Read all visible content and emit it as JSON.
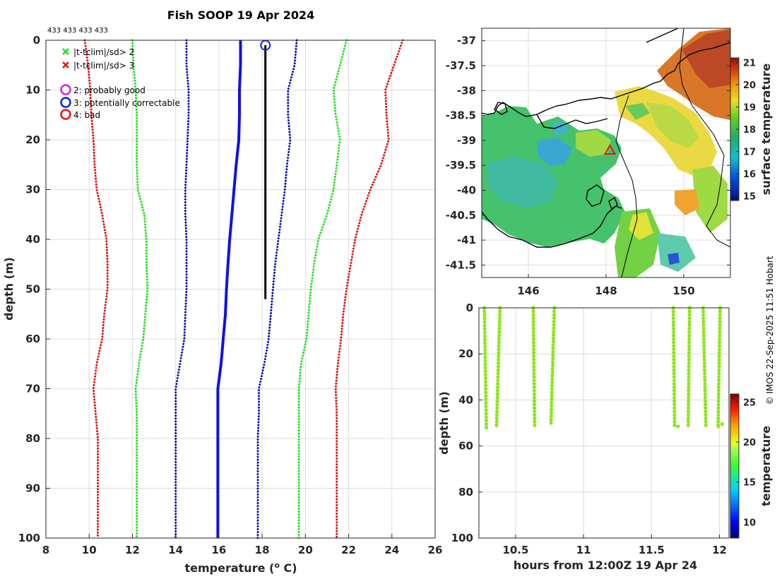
{
  "chart_data": [
    {
      "type": "line",
      "id": "profile",
      "title": "Fish SOOP 19 Apr 2024",
      "annotation": "433 433 433 433",
      "xlabel": "temperature (",
      "xlabel_sup": "o",
      "xlabel_end": " C)",
      "ylabel": "depth (m)",
      "xlim": [
        8,
        26
      ],
      "ylim": [
        0,
        100
      ],
      "xticks": [
        8,
        10,
        12,
        14,
        16,
        18,
        20,
        22,
        24,
        26
      ],
      "yticks": [
        0,
        10,
        20,
        30,
        40,
        50,
        60,
        70,
        80,
        90,
        100
      ],
      "legend": [
        {
          "label": "|t-tclim|/sd> 2",
          "marker": "x",
          "color": "#22dd22"
        },
        {
          "label": "|t-tclim|/sd> 3",
          "marker": "x",
          "color": "#ee1111"
        },
        {
          "label": "2: probably good",
          "marker": "o",
          "color": "#dd22dd"
        },
        {
          "label": "3: potentially correctable",
          "marker": "o",
          "color": "#1122dd"
        },
        {
          "label": "4: bad",
          "marker": "o",
          "color": "#ee1111"
        }
      ],
      "series": [
        {
          "name": "clim_mean",
          "style": "solid",
          "color": "#1010e8",
          "points": [
            [
              17.0,
              0
            ],
            [
              17.0,
              5
            ],
            [
              16.95,
              10
            ],
            [
              16.95,
              15
            ],
            [
              16.92,
              20
            ],
            [
              16.8,
              25
            ],
            [
              16.7,
              30
            ],
            [
              16.6,
              35
            ],
            [
              16.5,
              40
            ],
            [
              16.42,
              45
            ],
            [
              16.35,
              50
            ],
            [
              16.3,
              55
            ],
            [
              16.2,
              60
            ],
            [
              16.1,
              65
            ],
            [
              15.95,
              70
            ],
            [
              15.95,
              75
            ],
            [
              15.95,
              80
            ],
            [
              15.95,
              85
            ],
            [
              15.95,
              90
            ],
            [
              15.95,
              95
            ],
            [
              15.95,
              100
            ]
          ]
        },
        {
          "name": "clim_minus_1sd",
          "style": "dotted",
          "color": "#1010b0",
          "points": [
            [
              14.5,
              0
            ],
            [
              14.5,
              5
            ],
            [
              14.6,
              10
            ],
            [
              14.6,
              15
            ],
            [
              14.55,
              20
            ],
            [
              14.5,
              25
            ],
            [
              14.45,
              30
            ],
            [
              14.45,
              35
            ],
            [
              14.5,
              40
            ],
            [
              14.5,
              45
            ],
            [
              14.5,
              50
            ],
            [
              14.45,
              55
            ],
            [
              14.4,
              60
            ],
            [
              14.2,
              65
            ],
            [
              14.0,
              70
            ],
            [
              14.0,
              75
            ],
            [
              14.0,
              80
            ],
            [
              14.0,
              85
            ],
            [
              14.0,
              90
            ],
            [
              14.0,
              95
            ],
            [
              14.0,
              100
            ]
          ]
        },
        {
          "name": "clim_plus_1sd",
          "style": "dotted",
          "color": "#1010b0",
          "points": [
            [
              19.6,
              0
            ],
            [
              19.5,
              5
            ],
            [
              19.2,
              10
            ],
            [
              19.2,
              15
            ],
            [
              19.3,
              20
            ],
            [
              19.15,
              25
            ],
            [
              19.05,
              30
            ],
            [
              18.9,
              35
            ],
            [
              18.75,
              40
            ],
            [
              18.6,
              45
            ],
            [
              18.5,
              50
            ],
            [
              18.4,
              55
            ],
            [
              18.3,
              60
            ],
            [
              18.1,
              65
            ],
            [
              17.85,
              70
            ],
            [
              17.85,
              75
            ],
            [
              17.8,
              80
            ],
            [
              17.8,
              85
            ],
            [
              17.8,
              90
            ],
            [
              17.8,
              95
            ],
            [
              17.8,
              100
            ]
          ]
        },
        {
          "name": "clim_minus_2sd",
          "style": "dotted",
          "color": "#22dd22",
          "points": [
            [
              12.0,
              0
            ],
            [
              12.05,
              5
            ],
            [
              12.15,
              10
            ],
            [
              12.2,
              15
            ],
            [
              12.2,
              20
            ],
            [
              12.2,
              25
            ],
            [
              12.25,
              30
            ],
            [
              12.55,
              35
            ],
            [
              12.65,
              40
            ],
            [
              12.65,
              45
            ],
            [
              12.7,
              50
            ],
            [
              12.6,
              55
            ],
            [
              12.5,
              60
            ],
            [
              12.3,
              65
            ],
            [
              12.15,
              70
            ],
            [
              12.2,
              75
            ],
            [
              12.2,
              80
            ],
            [
              12.2,
              85
            ],
            [
              12.2,
              90
            ],
            [
              12.2,
              95
            ],
            [
              12.2,
              100
            ]
          ]
        },
        {
          "name": "clim_plus_2sd",
          "style": "dotted",
          "color": "#22dd22",
          "points": [
            [
              21.9,
              0
            ],
            [
              21.6,
              5
            ],
            [
              21.3,
              10
            ],
            [
              21.4,
              15
            ],
            [
              21.6,
              20
            ],
            [
              21.45,
              25
            ],
            [
              21.3,
              30
            ],
            [
              21.0,
              35
            ],
            [
              20.6,
              40
            ],
            [
              20.4,
              45
            ],
            [
              20.25,
              50
            ],
            [
              20.15,
              55
            ],
            [
              20.05,
              60
            ],
            [
              19.8,
              65
            ],
            [
              19.7,
              70
            ],
            [
              19.7,
              75
            ],
            [
              19.7,
              80
            ],
            [
              19.7,
              85
            ],
            [
              19.7,
              90
            ],
            [
              19.7,
              95
            ],
            [
              19.7,
              100
            ]
          ]
        },
        {
          "name": "clim_minus_3sd",
          "style": "dotted",
          "color": "#dd1111",
          "points": [
            [
              9.8,
              0
            ],
            [
              9.95,
              5
            ],
            [
              10.05,
              10
            ],
            [
              10.1,
              15
            ],
            [
              10.2,
              20
            ],
            [
              10.25,
              25
            ],
            [
              10.35,
              30
            ],
            [
              10.6,
              35
            ],
            [
              10.8,
              40
            ],
            [
              10.85,
              45
            ],
            [
              10.85,
              50
            ],
            [
              10.7,
              55
            ],
            [
              10.6,
              60
            ],
            [
              10.35,
              65
            ],
            [
              10.2,
              70
            ],
            [
              10.3,
              75
            ],
            [
              10.4,
              80
            ],
            [
              10.4,
              85
            ],
            [
              10.4,
              90
            ],
            [
              10.4,
              95
            ],
            [
              10.4,
              100
            ]
          ]
        },
        {
          "name": "clim_plus_3sd",
          "style": "dotted",
          "color": "#dd1111",
          "points": [
            [
              24.5,
              0
            ],
            [
              24.1,
              5
            ],
            [
              23.7,
              10
            ],
            [
              23.75,
              15
            ],
            [
              23.85,
              20
            ],
            [
              23.5,
              25
            ],
            [
              23.0,
              30
            ],
            [
              22.6,
              35
            ],
            [
              22.3,
              40
            ],
            [
              22.1,
              45
            ],
            [
              21.9,
              50
            ],
            [
              21.75,
              55
            ],
            [
              21.65,
              60
            ],
            [
              21.5,
              65
            ],
            [
              21.4,
              70
            ],
            [
              21.45,
              75
            ],
            [
              21.45,
              80
            ],
            [
              21.45,
              85
            ],
            [
              21.45,
              90
            ],
            [
              21.45,
              95
            ],
            [
              21.45,
              100
            ]
          ]
        },
        {
          "name": "observed_profile",
          "style": "solid",
          "color": "#000000",
          "points": [
            [
              18.15,
              1.0
            ],
            [
              18.15,
              10
            ],
            [
              18.15,
              20
            ],
            [
              18.15,
              30
            ],
            [
              18.15,
              40
            ],
            [
              18.15,
              50
            ],
            [
              18.15,
              52
            ]
          ]
        }
      ],
      "flags": [
        {
          "x": 18.15,
          "y": 1.0,
          "label": "3: potentially correctable",
          "color": "#1122dd"
        }
      ]
    },
    {
      "type": "heatmap",
      "id": "map",
      "colorbar_label": "surface temperature",
      "xlim": [
        144.8,
        151.2
      ],
      "ylim": [
        -41.75,
        -36.75
      ],
      "xticks": [
        146,
        148,
        150
      ],
      "yticks": [
        -37,
        -37.5,
        -38,
        -38.5,
        -39,
        -39.5,
        -40,
        -40.5,
        -41,
        -41.5
      ],
      "colorbar_ticks": [
        15,
        16,
        17,
        18,
        19,
        20,
        21
      ],
      "colorbar_range": [
        14.8,
        21.2
      ],
      "marker": {
        "lon": 148.1,
        "lat": -39.2,
        "symbol": "triangle",
        "color": "#ee1111"
      }
    },
    {
      "type": "scatter",
      "id": "time_depth",
      "xlabel": "hours from 12:00Z 19 Apr 24",
      "ylabel": "depth (m)",
      "colorbar_label": "temperature",
      "xlim": [
        10.23,
        12.07
      ],
      "ylim": [
        0,
        100
      ],
      "xticks": [
        10.5,
        11,
        11.5,
        12
      ],
      "yticks": [
        0,
        20,
        40,
        60,
        80,
        100
      ],
      "colorbar_ticks": [
        10,
        15,
        20,
        25
      ],
      "colorbar_range": [
        8,
        26
      ],
      "point_color": "#8ee61e",
      "casts": [
        {
          "t0": 10.27,
          "t1": 10.285,
          "d0": 0,
          "d1": 52
        },
        {
          "t0": 10.385,
          "t1": 10.36,
          "d0": 0,
          "d1": 51
        },
        {
          "t0": 10.63,
          "t1": 10.64,
          "d0": 0,
          "d1": 51
        },
        {
          "t0": 10.785,
          "t1": 10.76,
          "d0": 0,
          "d1": 50
        },
        {
          "t0": 11.66,
          "t1": 11.67,
          "d0": 0,
          "d1": 51
        },
        {
          "t0": 11.78,
          "t1": 11.77,
          "d0": 0,
          "d1": 51
        },
        {
          "t0": 11.88,
          "t1": 11.9,
          "d0": 0,
          "d1": 51
        },
        {
          "t0": 12.005,
          "t1": 11.99,
          "d0": 0,
          "d1": 51
        }
      ],
      "extra_points": [
        [
          11.695,
          51.5
        ],
        [
          12.02,
          50.5
        ],
        [
          11.992,
          51.5
        ]
      ]
    }
  ],
  "credit": "© IMOS 22-Sep-2025 11:51 Hobart"
}
